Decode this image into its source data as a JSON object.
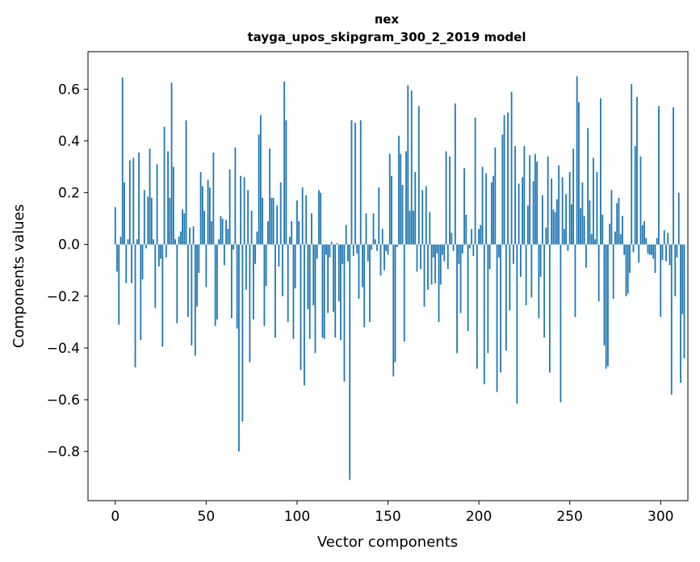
{
  "chart_data": {
    "type": "bar",
    "title": "пех",
    "subtitle": "tayga_upos_skipgram_300_2_2019 model",
    "xlabel": "Vector components",
    "ylabel": "Components values",
    "xlim": [
      -15,
      315
    ],
    "ylim": [
      -0.99,
      0.745
    ],
    "xticks": [
      0,
      50,
      100,
      150,
      200,
      250,
      300
    ],
    "xtick_labels": [
      "0",
      "50",
      "100",
      "150",
      "200",
      "250",
      "300"
    ],
    "yticks": [
      -0.8,
      -0.6,
      -0.4,
      -0.2,
      0.0,
      0.2,
      0.4,
      0.6
    ],
    "ytick_labels": [
      "−0.8",
      "−0.6",
      "−0.4",
      "−0.2",
      "0.0",
      "0.2",
      "0.4",
      "0.6"
    ],
    "grid": false,
    "bar_color": "#1f77b4",
    "series": [
      {
        "name": "пех",
        "values": [
          0.145,
          -0.105,
          -0.31,
          0.03,
          0.645,
          0.24,
          -0.15,
          0.02,
          0.325,
          -0.15,
          0.335,
          -0.475,
          0.02,
          0.355,
          -0.37,
          -0.135,
          0.21,
          -0.015,
          0.185,
          0.37,
          0.18,
          0.02,
          -0.245,
          0.31,
          -0.085,
          -0.055,
          -0.395,
          0.455,
          -0.05,
          0.36,
          0.18,
          0.625,
          0.3,
          0.02,
          -0.305,
          0.03,
          0.05,
          0.135,
          0.12,
          0.48,
          -0.28,
          0.065,
          -0.39,
          0.07,
          -0.43,
          -0.24,
          -0.11,
          0.28,
          0.225,
          0.13,
          -0.165,
          0.25,
          0.22,
          0.09,
          0.355,
          -0.315,
          -0.29,
          0.02,
          0.11,
          0.1,
          -0.08,
          0.095,
          0.06,
          0.29,
          -0.285,
          -0.02,
          0.375,
          -0.325,
          -0.8,
          0.265,
          -0.685,
          0.26,
          -0.175,
          0.21,
          -0.455,
          0.13,
          -0.29,
          -0.075,
          0.05,
          0.425,
          0.5,
          0.18,
          -0.315,
          -0.16,
          0.09,
          0.37,
          0.18,
          0.18,
          -0.36,
          0.15,
          -0.085,
          0.24,
          -0.2,
          0.63,
          0.48,
          -0.3,
          0.03,
          0.09,
          -0.365,
          -0.17,
          0.17,
          0.09,
          -0.485,
          0.22,
          -0.545,
          0.19,
          -0.25,
          -0.365,
          0.12,
          -0.235,
          -0.42,
          -0.055,
          0.21,
          0.2,
          -0.36,
          -0.365,
          -0.04,
          -0.265,
          -0.05,
          0.01,
          -0.26,
          -0.36,
          0.005,
          -0.22,
          -0.37,
          -0.075,
          -0.53,
          0.075,
          -0.065,
          -0.91,
          0.48,
          -0.045,
          0.47,
          -0.035,
          -0.21,
          0.48,
          -0.165,
          -0.32,
          0.12,
          -0.065,
          -0.3,
          -0.02,
          0.12,
          0.02,
          -0.025,
          0.22,
          -0.12,
          0.06,
          -0.1,
          -0.025,
          -0.04,
          0.35,
          0.265,
          -0.51,
          -0.455,
          -0.01,
          0.42,
          0.35,
          0.23,
          -0.375,
          0.36,
          0.615,
          0.13,
          0.595,
          0.13,
          0.28,
          -0.105,
          0.535,
          -0.095,
          0.21,
          -0.24,
          0.225,
          -0.175,
          0.125,
          -0.155,
          -0.05,
          -0.15,
          -0.035,
          -0.3,
          -0.155,
          -0.04,
          -0.065,
          0.36,
          -0.095,
          0.34,
          0.045,
          -0.025,
          0.545,
          -0.42,
          -0.075,
          -0.265,
          -0.035,
          0.295,
          0.115,
          -0.335,
          -0.015,
          0.06,
          -0.045,
          0.49,
          -0.48,
          0.06,
          0.075,
          0.3,
          -0.54,
          0.275,
          -0.42,
          -0.095,
          0.24,
          0.265,
          0.375,
          -0.57,
          -0.05,
          -0.495,
          0.425,
          0.5,
          -0.41,
          0.51,
          -0.255,
          0.59,
          -0.075,
          0.38,
          -0.615,
          0.235,
          -0.125,
          0.26,
          0.38,
          -0.235,
          0.15,
          0.345,
          -0.205,
          0.245,
          0.35,
          0.32,
          -0.285,
          -0.125,
          0.19,
          -0.36,
          0.065,
          0.34,
          -0.495,
          0.255,
          0.135,
          0.125,
          0.175,
          0.305,
          -0.61,
          0.26,
          0.06,
          0.195,
          -0.025,
          0.28,
          0.155,
          0.37,
          -0.28,
          0.65,
          0.55,
          0.14,
          0.24,
          0.11,
          -0.09,
          0.45,
          0.17,
          0.04,
          0.335,
          0.02,
          0.28,
          -0.22,
          0.565,
          0.115,
          -0.39,
          -0.48,
          -0.47,
          0.08,
          0.21,
          -0.21,
          0.05,
          0.16,
          0.18,
          0.04,
          0.11,
          -0.04,
          -0.2,
          -0.19,
          -0.11,
          0.62,
          -0.03,
          0.38,
          0.57,
          -0.07,
          0.34,
          0.075,
          0.09,
          0.025,
          -0.035,
          -0.04,
          -0.04,
          -0.055,
          -0.11,
          0.025,
          0.535,
          -0.28,
          -0.06,
          0.055,
          -0.065,
          0.045,
          -0.08,
          -0.58,
          0.53,
          -0.2,
          -0.05,
          0.2,
          -0.535,
          -0.27,
          -0.44
        ]
      }
    ]
  }
}
